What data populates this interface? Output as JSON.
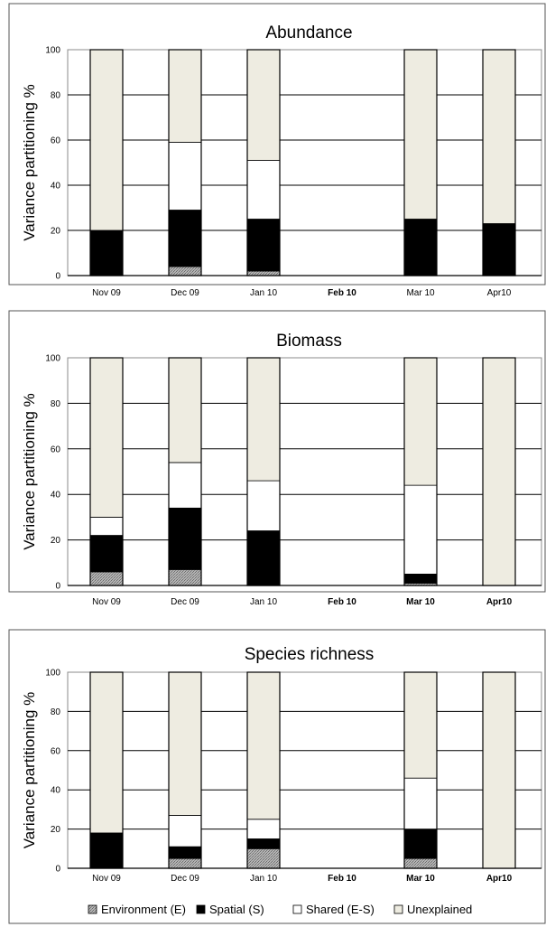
{
  "chart_data": [
    {
      "type": "bar",
      "stacked": true,
      "title": "Abundance",
      "ylabel": "Variance partitioning %",
      "xlabel": "",
      "ylim": [
        0,
        100
      ],
      "yticks": [
        "0",
        "20",
        "40",
        "60",
        "80",
        "100"
      ],
      "categories": [
        "Nov 09",
        "Dec 09",
        "Jan 10",
        "Feb 10",
        "Mar 10",
        "Apr10"
      ],
      "series": [
        {
          "name": "Environment (E)",
          "values": [
            0,
            4,
            2,
            0,
            0,
            0
          ]
        },
        {
          "name": "Spatial (S)",
          "values": [
            20,
            25,
            23,
            0,
            25,
            23
          ]
        },
        {
          "name": "Shared (E-S)",
          "values": [
            0,
            30,
            26,
            0,
            0,
            0
          ]
        },
        {
          "name": "Unexplained",
          "values": [
            80,
            41,
            49,
            0,
            75,
            77
          ]
        }
      ],
      "grid": true
    },
    {
      "type": "bar",
      "stacked": true,
      "title": "Biomass",
      "ylabel": "Variance partitioning %",
      "xlabel": "",
      "ylim": [
        0,
        100
      ],
      "yticks": [
        "0",
        "20",
        "40",
        "60",
        "80",
        "100"
      ],
      "categories": [
        "Nov 09",
        "Dec 09",
        "Jan 10",
        "Feb 10",
        "Mar 10",
        "Apr10"
      ],
      "series": [
        {
          "name": "Environment (E)",
          "values": [
            6,
            7,
            0,
            0,
            1,
            0
          ]
        },
        {
          "name": "Spatial (S)",
          "values": [
            16,
            27,
            24,
            0,
            4,
            0
          ]
        },
        {
          "name": "Shared (E-S)",
          "values": [
            8,
            20,
            22,
            0,
            39,
            0
          ]
        },
        {
          "name": "Unexplained",
          "values": [
            70,
            46,
            54,
            0,
            56,
            100
          ]
        }
      ],
      "grid": true
    },
    {
      "type": "bar",
      "stacked": true,
      "title": "Species richness",
      "ylabel": "Variance partitioning %",
      "xlabel": "",
      "ylim": [
        0,
        100
      ],
      "yticks": [
        "0",
        "20",
        "40",
        "60",
        "80",
        "100"
      ],
      "categories": [
        "Nov 09",
        "Dec 09",
        "Jan 10",
        "Feb 10",
        "Mar 10",
        "Apr10"
      ],
      "series": [
        {
          "name": "Environment (E)",
          "values": [
            0,
            5,
            10,
            0,
            5,
            0
          ]
        },
        {
          "name": "Spatial (S)",
          "values": [
            18,
            6,
            5,
            0,
            15,
            0
          ]
        },
        {
          "name": "Shared (E-S)",
          "values": [
            0,
            16,
            10,
            0,
            26,
            0
          ]
        },
        {
          "name": "Unexplained",
          "values": [
            82,
            73,
            75,
            0,
            54,
            100
          ]
        }
      ],
      "grid": true
    }
  ],
  "legend": {
    "placement": "bottom",
    "items": [
      {
        "label": "Environment (E)",
        "color": "#a9a9a9",
        "pattern": "hatched"
      },
      {
        "label": "Spatial (S)",
        "color": "#000000"
      },
      {
        "label": "Shared (E-S)",
        "color": "#ffffff"
      },
      {
        "label": "Unexplained",
        "color": "#eeece1"
      }
    ]
  },
  "colors": {
    "environment": "#a9a9a9",
    "spatial": "#000000",
    "shared": "#ffffff",
    "unexplained": "#eeece1",
    "gridline": "#000000"
  }
}
